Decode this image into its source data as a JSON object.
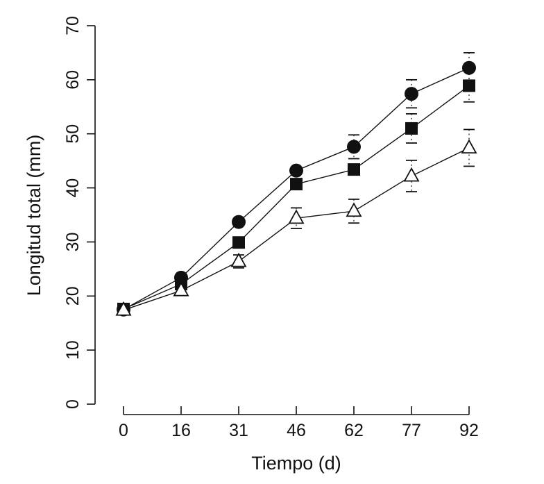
{
  "chart_data": {
    "type": "line",
    "title": "",
    "xlabel": "Tiempo (d)",
    "ylabel": "Longitud total (mm)",
    "x": [
      0,
      16,
      31,
      46,
      62,
      77,
      92
    ],
    "x_tick_labels": [
      "0",
      "16",
      "31",
      "46",
      "62",
      "77",
      "92"
    ],
    "ylim": [
      0,
      70
    ],
    "y_ticks": [
      0,
      10,
      20,
      30,
      40,
      50,
      60,
      70
    ],
    "y_tick_labels": [
      "0",
      "10",
      "20",
      "30",
      "40",
      "50",
      "60",
      "70"
    ],
    "grid": false,
    "legend": "none",
    "series": [
      {
        "name": "filled-circle",
        "marker": "circle-filled",
        "values": [
          17.5,
          23.4,
          33.7,
          43.2,
          47.6,
          57.4,
          62.2
        ],
        "errors": [
          0,
          0,
          0,
          0,
          2.2,
          2.6,
          2.8
        ]
      },
      {
        "name": "filled-square",
        "marker": "square-filled",
        "values": [
          17.6,
          22.2,
          29.9,
          40.7,
          43.4,
          51.0,
          58.9
        ],
        "errors": [
          0,
          0,
          0,
          0,
          0,
          2.7,
          3.0
        ]
      },
      {
        "name": "open-triangle",
        "marker": "triangle-open",
        "values": [
          17.4,
          21.0,
          26.4,
          34.4,
          35.7,
          42.2,
          47.4
        ],
        "errors": [
          0,
          0,
          1.2,
          1.9,
          2.2,
          2.9,
          3.4
        ]
      }
    ]
  }
}
